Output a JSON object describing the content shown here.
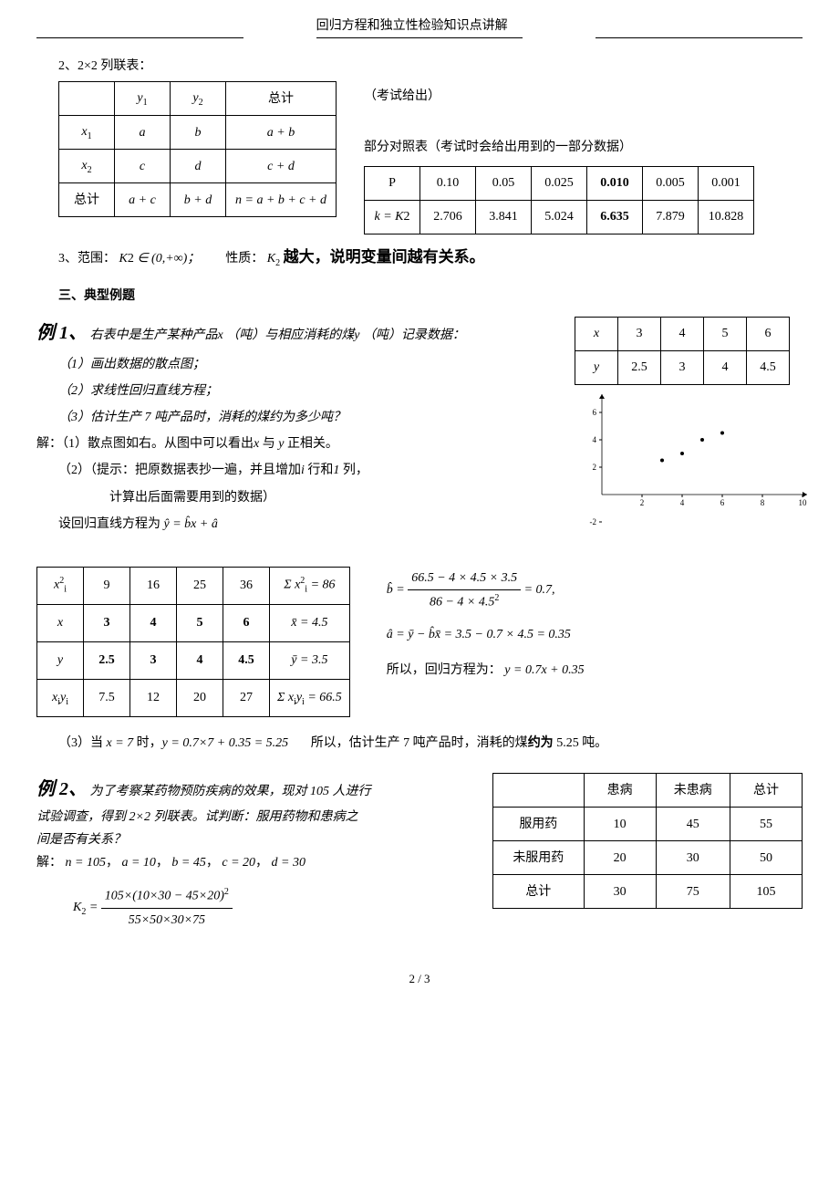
{
  "header": {
    "title": "回归方程和独立性检验知识点讲解"
  },
  "sec2": {
    "label": "2、2×2 列联表：",
    "table": {
      "y1": "y",
      "y1s": "1",
      "y2": "y",
      "y2s": "2",
      "total": "总计",
      "x1": "x",
      "x1s": "1",
      "x2": "x",
      "x2s": "2",
      "rowtotal": "总计",
      "a": "a",
      "b": "b",
      "apb": "a + b",
      "c": "c",
      "d": "d",
      "cpd": "c + d",
      "apc": "a + c",
      "bpd": "b + d",
      "n": "n = a + b + c + d"
    },
    "exam_note": "（考试给出）",
    "partial_label": "部分对照表（考试时会给出用到的一部分数据）",
    "ptable": {
      "P": "P",
      "head": [
        "0.10",
        "0.05",
        "0.025",
        "0.010",
        "0.005",
        "0.001"
      ],
      "k": "k = K",
      "k2": "2",
      "vals": [
        "2.706",
        "3.841",
        "5.024",
        "6.635",
        "7.879",
        "10.828"
      ]
    }
  },
  "sec3": {
    "label_pre": "3、范围：",
    "range": "K",
    "r2": "2",
    "rin": " ∈ (0,+∞)；",
    "prop_label": "性质：",
    "prop_k": "K",
    "prop2": "2",
    "prop_text": "越大，说明变量间越有关系。"
  },
  "typ_head": "三、典型例题",
  "ex1": {
    "label": "例 1、",
    "intro_a": "右表中是生产某种产品",
    "intro_x": "x",
    "intro_b": "（吨）与相应消耗的煤",
    "intro_y": "y",
    "intro_c": "（吨）记录数据：",
    "q1": "（1）画出数据的散点图；",
    "q2": "（2）求线性回归直线方程；",
    "q3": "（3）估计生产 7 吨产品时，消耗的煤约为多少吨？",
    "sol1_a": "解：（1）散点图如右。从图中可以看出",
    "sol1_x": "x",
    "sol1_b": " 与 ",
    "sol1_y": "y",
    "sol1_c": " 正相关。",
    "sol2a": "（2）（提示：把原数据表抄一遍，并且增加",
    "sol2b": "i",
    "sol2c": "行和",
    "sol2d": "1",
    "sol2e": "列，",
    "sol2f": "计算出后面需要用到的数据）",
    "eqline_a": "设回归直线方程为  ",
    "eqline_b": "ŷ = b̂x + â",
    "xytable": {
      "hx": "x",
      "hy": "y",
      "xs": [
        "3",
        "4",
        "5",
        "6"
      ],
      "ys": [
        "2.5",
        "3",
        "4",
        "4.5"
      ]
    },
    "scatter": {
      "xvals": [
        3,
        4,
        5,
        6
      ],
      "yvals": [
        2.5,
        3,
        4,
        4.5
      ],
      "xticks": [
        2,
        4,
        6,
        8,
        10
      ],
      "yticks": [
        -2,
        2,
        4,
        6
      ],
      "ext": [
        -8,
        -10
      ],
      "point_color": "#000",
      "axis_color": "#000"
    },
    "calc": {
      "r1h": "x",
      "r1hs": "i",
      "r1h2": "2",
      "r1": [
        "9",
        "16",
        "25",
        "36"
      ],
      "r1sum": "Σ  x",
      "r1sumi": "i",
      "r1sum2": "2",
      "r1eq": " = 86",
      "r2h": "x",
      "r2": [
        "3",
        "4",
        "5",
        "6"
      ],
      "r2sum": "x̄ = 4.5",
      "r3h": "y",
      "r3": [
        "2.5",
        "3",
        "4",
        "4.5"
      ],
      "r3sum": "ȳ = 3.5",
      "r4h1": "x",
      "r4hi": "i",
      "r4h2": "y",
      "r4hj": "i",
      "r4": [
        "7.5",
        "12",
        "20",
        "27"
      ],
      "r4sum": "Σ  x",
      "r4si": "i",
      "r4sy": "y",
      "r4sj": "i",
      "r4eq": " = 66.5"
    },
    "bhat": {
      "num": "66.5 − 4 × 4.5 × 3.5",
      "den": "86 − 4 × 4.5",
      "den2": "2",
      "eq": "= 0.7,",
      "pre": "b̂ ="
    },
    "ahat": "â = ȳ − b̂x̄ = 3.5 − 0.7 × 4.5 = 0.35",
    "result": "所以，回归方程为：",
    "result_eq": "y = 0.7x + 0.35",
    "q3sol_a": "（3）当 ",
    "q3sol_eq": "x = 7",
    "q3sol_b": " 时，",
    "q3sol_eq2": "y = 0.7×7 + 0.35 = 5.25",
    "q3sol_c": "所以，估计生产 7 吨产品时，消耗的煤",
    "q3sol_d": "约为",
    "q3sol_e": " 5.25 吨。"
  },
  "ex2": {
    "label": "例 2、",
    "intro": "为了考察某药物预防疾病的效果，现对 105 人进行",
    "intro2": "试验调查，得到 2×2 列联表。试判断：服用药物和患病之",
    "intro3": "间是否有关系？",
    "sol": "解：",
    "neq": "n = 105",
    "comma": "，",
    "a": "a = 10",
    "b": "b = 45",
    "c": "c = 20",
    "d": "d = 30",
    "k2": {
      "pre": "K",
      "sup": "2",
      "eq": " = ",
      "num": "105×(10×30 − 45×20)",
      "num2": "2",
      "den": "55×50×30×75"
    },
    "table": {
      "h": [
        "",
        "患病",
        "未患病",
        "总计"
      ],
      "r1": [
        "服用药",
        "10",
        "45",
        "55"
      ],
      "r2": [
        "未服用药",
        "20",
        "30",
        "50"
      ],
      "r3": [
        "总计",
        "30",
        "75",
        "105"
      ]
    }
  },
  "footer": "2 / 3"
}
